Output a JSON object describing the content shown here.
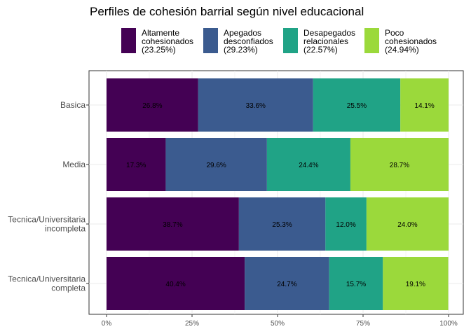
{
  "chart_data": {
    "type": "bar",
    "orientation": "horizontal",
    "stacked": true,
    "title": "Perfiles de cohesión barrial según nivel educacional",
    "xlabel": "",
    "ylabel": "",
    "xlim": [
      0,
      100
    ],
    "x_ticks": [
      "0%",
      "25%",
      "50%",
      "75%",
      "100%"
    ],
    "grid": true,
    "legend_position": "top",
    "categories": [
      [
        "Basica"
      ],
      [
        "Media"
      ],
      [
        "Tecnica/Universitaria",
        "incompleta"
      ],
      [
        "Tecnica/Universitaria",
        "completa"
      ]
    ],
    "series": [
      {
        "name": [
          "Altamente",
          "cohesionados",
          "(23.25%)"
        ],
        "color": "#440154",
        "values": [
          26.8,
          17.3,
          38.7,
          40.4
        ],
        "labels": [
          "26.8%",
          "17.3%",
          "38.7%",
          "40.4%"
        ]
      },
      {
        "name": [
          "Apegados",
          "desconfiados",
          "(29.23%)"
        ],
        "color": "#3b5b8f",
        "values": [
          33.6,
          29.6,
          25.3,
          24.7
        ],
        "labels": [
          "33.6%",
          "29.6%",
          "25.3%",
          "24.7%"
        ]
      },
      {
        "name": [
          "Desapegados",
          "relacionales",
          "(22.57%)"
        ],
        "color": "#20a386",
        "values": [
          25.5,
          24.4,
          12.0,
          15.7
        ],
        "labels": [
          "25.5%",
          "24.4%",
          "12.0%",
          "15.7%"
        ]
      },
      {
        "name": [
          "Poco",
          "cohesionados",
          "(24.94%)"
        ],
        "color": "#9bd93b",
        "values": [
          14.1,
          28.7,
          24.0,
          19.1
        ],
        "labels": [
          "14.1%",
          "28.7%",
          "24.0%",
          "19.1%"
        ]
      }
    ]
  }
}
